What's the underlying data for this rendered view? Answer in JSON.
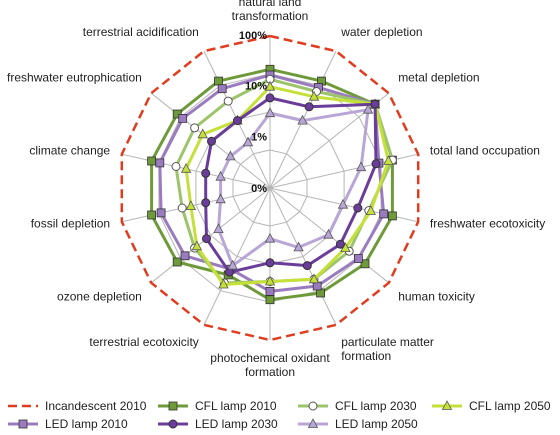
{
  "chart_data": {
    "type": "radar",
    "scale": "log",
    "axes": [
      [
        "natural land",
        "transformation"
      ],
      [
        "water depletion"
      ],
      [
        "metal depletion"
      ],
      [
        "total land occupation"
      ],
      [
        "freshwater ecotoxicity"
      ],
      [
        "human toxicity"
      ],
      [
        "particulate matter",
        "formation"
      ],
      [
        "photochemical oxidant",
        "formation"
      ],
      [
        "terrestrial ecotoxicity"
      ],
      [
        "ozone depletion"
      ],
      [
        "fossil depletion"
      ],
      [
        "climate change"
      ],
      [
        "freshwater eutrophication"
      ],
      [
        "terrestrial acidification"
      ]
    ],
    "ring_labels": [
      "0%",
      "1%",
      "10%",
      "100%"
    ],
    "ring_values": [
      0.1,
      1,
      10,
      100
    ],
    "series": [
      {
        "name": "Incandescent 2010",
        "color": "#e03c1f",
        "marker": "none",
        "dashed": true,
        "values": [
          100,
          100,
          100,
          100,
          100,
          100,
          100,
          100,
          100,
          100,
          100,
          100,
          100,
          100
        ]
      },
      {
        "name": "CFL lamp 2010",
        "color": "#6e9a3a",
        "marker": "square",
        "values": [
          22,
          22,
          45,
          30,
          30,
          25,
          20,
          16,
          8,
          22,
          25,
          25,
          22,
          22
        ]
      },
      {
        "name": "CFL lamp 2030",
        "color": "#9cc46a",
        "marker": "circle",
        "values": [
          14,
          13,
          45,
          30,
          10,
          10,
          10,
          7,
          12,
          8,
          6,
          8,
          8,
          8
        ]
      },
      {
        "name": "CFL lamp 2050",
        "color": "#c6e03a",
        "marker": "triangle",
        "values": [
          10,
          10,
          45,
          25,
          11,
          8,
          10,
          7,
          13,
          7,
          4,
          5,
          5,
          3
        ]
      },
      {
        "name": "LED lamp 2010",
        "color": "#9b7bbf",
        "marker": "square",
        "values": [
          17,
          16,
          45,
          16,
          20,
          17,
          14,
          11,
          6,
          14,
          16,
          17,
          16,
          15
        ]
      },
      {
        "name": "LED lamp 2030",
        "color": "#6a3d9a",
        "marker": "circle",
        "values": [
          6,
          6,
          45,
          14,
          6,
          6,
          5,
          3,
          7,
          4,
          2,
          2,
          3,
          3
        ]
      },
      {
        "name": "LED lamp 2050",
        "color": "#b8a7d6",
        "marker": "triangle",
        "values": [
          3,
          3,
          30,
          7,
          3,
          3,
          2,
          1,
          5,
          2,
          1,
          1,
          1,
          1
        ]
      }
    ]
  }
}
